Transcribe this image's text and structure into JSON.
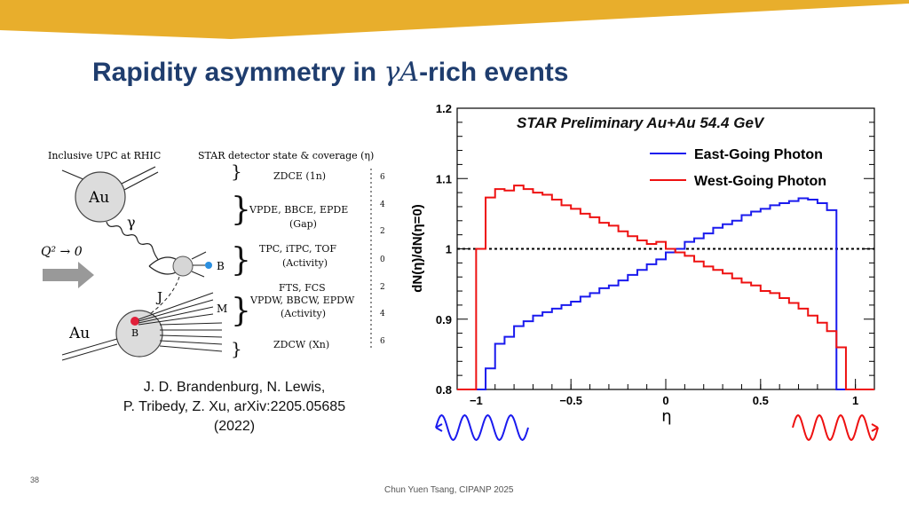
{
  "slide": {
    "title_before": "Rapidity asymmetry in ",
    "title_math": "γA",
    "title_after": "-rich events",
    "page_number": "38",
    "footer": "Chun Yuen Tsang, CIPANP 2025"
  },
  "colors": {
    "banner": "#e8ae2c",
    "title": "#1f3d6e",
    "east": "#1a1aee",
    "west": "#ee1111"
  },
  "citation": {
    "line1": "J. D. Brandenburg, N. Lewis,",
    "line2": "P. Tribedy, Z. Xu, arXiv:2205.05685",
    "line3": "(2022)"
  },
  "diagram": {
    "header_left": "Inclusive UPC at RHIC",
    "header_right": "STAR detector state & coverage (η)",
    "nucleus_top": "Au",
    "nucleus_bottom": "Au",
    "gamma": "γ",
    "q2": "Q² → 0",
    "label_B1": "B",
    "label_B2": "B",
    "label_J": "J",
    "label_M": "M",
    "detectors": [
      {
        "line1": "ZDCE (1n)",
        "line2": ""
      },
      {
        "line1": "VPDE, BBCE, EPDE",
        "line2": "(Gap)"
      },
      {
        "line1": "TPC, iTPC, TOF",
        "line2": "(Activity)"
      },
      {
        "line1": "FTS, FCS",
        "line2": "VPDW, BBCW, EPDW",
        "line3": "(Activity)"
      },
      {
        "line1": "ZDCW (Xn)",
        "line2": ""
      }
    ],
    "eta_ticks": [
      "6",
      "4",
      "2",
      "0",
      "2",
      "4",
      "6"
    ]
  },
  "chart_data": {
    "type": "line",
    "title": "STAR Preliminary  Au+Au 54.4 GeV",
    "xlabel": "η",
    "ylabel": "dN(η)/dN(η=0)",
    "xlim": [
      -1.1,
      1.1
    ],
    "ylim": [
      0.8,
      1.2
    ],
    "xticks": [
      "−1",
      "−0.5",
      "0",
      "0.5",
      "1"
    ],
    "yticks": [
      "0.8",
      "0.9",
      "1",
      "1.1",
      "1.2"
    ],
    "reference_line": 1.0,
    "bin_edges": [
      -1.1,
      -1.05,
      -1.0,
      -0.95,
      -0.9,
      -0.85,
      -0.8,
      -0.75,
      -0.7,
      -0.65,
      -0.6,
      -0.55,
      -0.5,
      -0.45,
      -0.4,
      -0.35,
      -0.3,
      -0.25,
      -0.2,
      -0.15,
      -0.1,
      -0.05,
      0.0,
      0.05,
      0.1,
      0.15,
      0.2,
      0.25,
      0.3,
      0.35,
      0.4,
      0.45,
      0.5,
      0.55,
      0.6,
      0.65,
      0.7,
      0.75,
      0.8,
      0.85,
      0.9,
      0.95,
      1.0,
      1.05,
      1.1
    ],
    "legend_position": "top-right",
    "series": [
      {
        "name": "East-Going Photon",
        "color": "#1a1aee",
        "values": [
          0.8,
          0.8,
          0.8,
          0.83,
          0.865,
          0.875,
          0.89,
          0.897,
          0.905,
          0.91,
          0.915,
          0.92,
          0.925,
          0.932,
          0.937,
          0.944,
          0.948,
          0.955,
          0.963,
          0.97,
          0.978,
          0.985,
          0.995,
          1.0,
          1.01,
          1.015,
          1.022,
          1.03,
          1.035,
          1.04,
          1.048,
          1.053,
          1.057,
          1.062,
          1.065,
          1.068,
          1.072,
          1.07,
          1.065,
          1.055,
          0.8,
          0.8,
          0.8,
          0.8
        ]
      },
      {
        "name": "West-Going Photon",
        "color": "#ee1111",
        "values": [
          0.8,
          0.8,
          1.0,
          1.073,
          1.085,
          1.083,
          1.09,
          1.085,
          1.08,
          1.077,
          1.07,
          1.062,
          1.057,
          1.05,
          1.045,
          1.037,
          1.033,
          1.025,
          1.018,
          1.012,
          1.007,
          1.01,
          1.0,
          0.995,
          0.99,
          0.982,
          0.975,
          0.97,
          0.965,
          0.958,
          0.952,
          0.948,
          0.94,
          0.937,
          0.93,
          0.923,
          0.915,
          0.905,
          0.895,
          0.883,
          0.86,
          0.8,
          0.8,
          0.8
        ]
      }
    ]
  }
}
